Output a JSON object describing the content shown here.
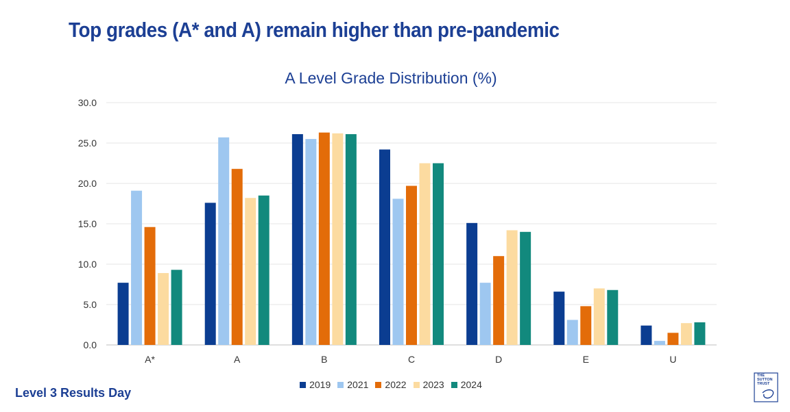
{
  "headline": "Top grades (A* and A) remain higher than pre-pandemic",
  "footer": "Level 3 Results Day",
  "logo": {
    "text": "THE SUTTON TRUST",
    "lines": [
      "THE",
      "SUTTON",
      "TRUST"
    ]
  },
  "chart_data": {
    "type": "bar",
    "title": "A Level Grade Distribution (%)",
    "xlabel": "",
    "ylabel": "",
    "categories": [
      "A*",
      "A",
      "B",
      "C",
      "D",
      "E",
      "U"
    ],
    "ylim": [
      0,
      30
    ],
    "yticks": [
      "0.0",
      "5.0",
      "10.0",
      "15.0",
      "20.0",
      "25.0",
      "30.0"
    ],
    "grid": true,
    "legend_position": "bottom",
    "series": [
      {
        "name": "2019",
        "color": "#0b3d91",
        "values": [
          7.7,
          17.6,
          26.1,
          24.2,
          15.1,
          6.6,
          2.4
        ]
      },
      {
        "name": "2021",
        "color": "#9ec7f0",
        "values": [
          19.1,
          25.7,
          25.5,
          18.1,
          7.7,
          3.1,
          0.5
        ]
      },
      {
        "name": "2022",
        "color": "#e36c09",
        "values": [
          14.6,
          21.8,
          26.3,
          19.7,
          11.0,
          4.8,
          1.5
        ]
      },
      {
        "name": "2023",
        "color": "#fcdba0",
        "values": [
          8.9,
          18.2,
          26.2,
          22.5,
          14.2,
          7.0,
          2.7
        ]
      },
      {
        "name": "2024",
        "color": "#12897d",
        "values": [
          9.3,
          18.5,
          26.1,
          22.5,
          14.0,
          6.8,
          2.8
        ]
      }
    ]
  }
}
